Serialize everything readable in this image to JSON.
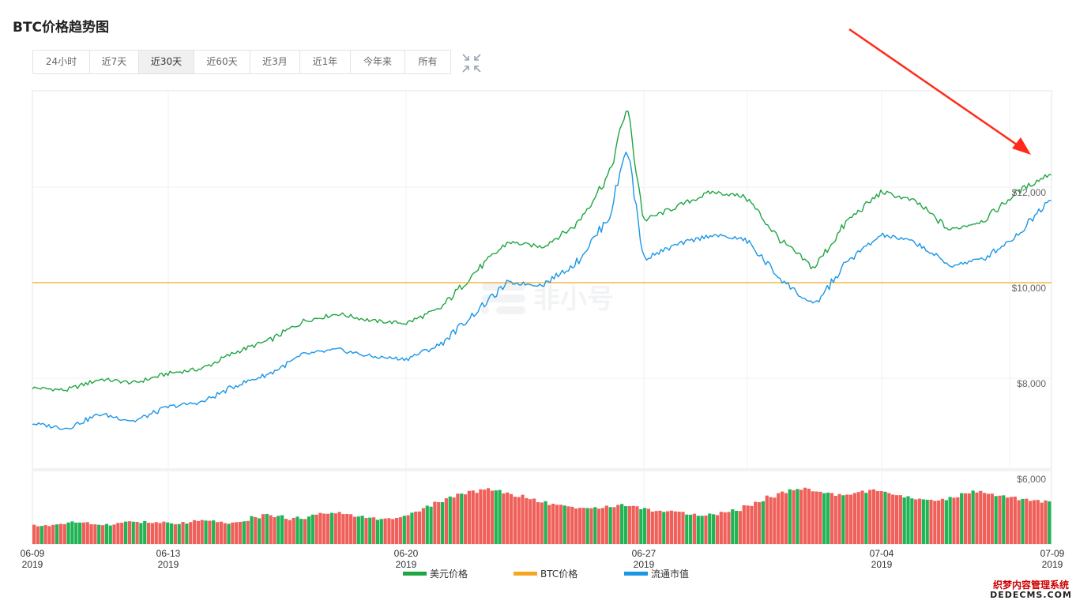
{
  "page": {
    "title": "BTC价格趋势图"
  },
  "range_tabs": {
    "items": [
      {
        "label": "24小时",
        "active": false
      },
      {
        "label": "近7天",
        "active": false
      },
      {
        "label": "近30天",
        "active": true
      },
      {
        "label": "近60天",
        "active": false
      },
      {
        "label": "近3月",
        "active": false
      },
      {
        "label": "近1年",
        "active": false
      },
      {
        "label": "今年来",
        "active": false
      },
      {
        "label": "所有",
        "active": false
      }
    ],
    "fullscreen_icon": "collapse-arrows-icon"
  },
  "watermark": {
    "brand_text": "非小号",
    "site_line1": "织梦内容管理系统",
    "site_line2": "DEDECMS.COM"
  },
  "colors": {
    "usd_price": "#1fa542",
    "btc_price": "#f5a623",
    "market_cap": "#1a96e6",
    "volume_up": "#21b455",
    "volume_down": "#f0605a",
    "annotation_arrow": "#ff2a1a"
  },
  "chart_data": {
    "type": "line",
    "x_tick_labels": [
      {
        "date": "06-09",
        "year": "2019"
      },
      {
        "date": "06-13",
        "year": "2019"
      },
      {
        "date": "06-20",
        "year": "2019"
      },
      {
        "date": "06-27",
        "year": "2019"
      },
      {
        "date": "07-04",
        "year": "2019"
      },
      {
        "date": "07-09",
        "year": "2019"
      }
    ],
    "y_tick_labels": [
      "$12,000",
      "$10,000",
      "$8,000",
      "$6,000"
    ],
    "ylim": [
      6000,
      13900
    ],
    "x_range": [
      "2019-06-09",
      "2019-07-09"
    ],
    "grid": true,
    "legend_position": "bottom-center",
    "series": [
      {
        "name": "美元价格",
        "key": "usd",
        "x": [
          "2019-06-09",
          "2019-06-10",
          "2019-06-11",
          "2019-06-12",
          "2019-06-13",
          "2019-06-14",
          "2019-06-15",
          "2019-06-16",
          "2019-06-17",
          "2019-06-18",
          "2019-06-19",
          "2019-06-20",
          "2019-06-21",
          "2019-06-22",
          "2019-06-23",
          "2019-06-24",
          "2019-06-25",
          "2019-06-26",
          "2019-06-26 12:00",
          "2019-06-27",
          "2019-06-28",
          "2019-06-29",
          "2019-06-30",
          "2019-07-01",
          "2019-07-02",
          "2019-07-03",
          "2019-07-04",
          "2019-07-05",
          "2019-07-06",
          "2019-07-07",
          "2019-07-08",
          "2019-07-09"
        ],
        "values": [
          7800,
          7750,
          7980,
          7900,
          8100,
          8200,
          8550,
          8800,
          9200,
          9350,
          9200,
          9150,
          9450,
          10200,
          10850,
          10750,
          11200,
          12300,
          13700,
          11300,
          11600,
          11900,
          11800,
          10900,
          10300,
          11300,
          11900,
          11700,
          11100,
          11300,
          11900,
          12300
        ]
      },
      {
        "name": "BTC价格",
        "key": "btc",
        "x": [
          "2019-06-09",
          "2019-07-09"
        ],
        "values": [
          10000,
          10000
        ]
      },
      {
        "name": "流通市值",
        "key": "mcap",
        "x": [
          "2019-06-09",
          "2019-06-10",
          "2019-06-11",
          "2019-06-12",
          "2019-06-13",
          "2019-06-14",
          "2019-06-15",
          "2019-06-16",
          "2019-06-17",
          "2019-06-18",
          "2019-06-19",
          "2019-06-20",
          "2019-06-21",
          "2019-06-22",
          "2019-06-23",
          "2019-06-24",
          "2019-06-25",
          "2019-06-26",
          "2019-06-26 12:00",
          "2019-06-27",
          "2019-06-28",
          "2019-06-29",
          "2019-06-30",
          "2019-07-01",
          "2019-07-02",
          "2019-07-03",
          "2019-07-04",
          "2019-07-05",
          "2019-07-06",
          "2019-07-07",
          "2019-07-08",
          "2019-07-09"
        ],
        "values": [
          7050,
          6950,
          7250,
          7100,
          7400,
          7500,
          7850,
          8100,
          8500,
          8600,
          8450,
          8400,
          8700,
          9350,
          10000,
          9950,
          10400,
          11400,
          12900,
          10500,
          10800,
          11000,
          10900,
          10100,
          9500,
          10450,
          11000,
          10850,
          10350,
          10500,
          11000,
          11800
        ]
      }
    ],
    "volume": {
      "type": "bar",
      "values": [
        30,
        31,
        33,
        36,
        34,
        33,
        32,
        34,
        37,
        36,
        35,
        35,
        33,
        35,
        38,
        37,
        36,
        34,
        38,
        44,
        48,
        46,
        41,
        43,
        47,
        50,
        52,
        49,
        45,
        43,
        41,
        42,
        46,
        52,
        61,
        68,
        77,
        82,
        86,
        91,
        88,
        83,
        79,
        74,
        70,
        66,
        63,
        60,
        59,
        60,
        62,
        64,
        62,
        58,
        55,
        53,
        52,
        50,
        48,
        49,
        52,
        56,
        63,
        70,
        78,
        85,
        89,
        91,
        87,
        83,
        81,
        83,
        86,
        88,
        85,
        80,
        77,
        74,
        71,
        73,
        77,
        82,
        86,
        83,
        79,
        76,
        73,
        71,
        70
      ]
    }
  },
  "legend": {
    "items": [
      {
        "label": "美元价格",
        "key": "usd"
      },
      {
        "label": "BTC价格",
        "key": "btc"
      },
      {
        "label": "流通市值",
        "key": "mcap"
      }
    ]
  }
}
